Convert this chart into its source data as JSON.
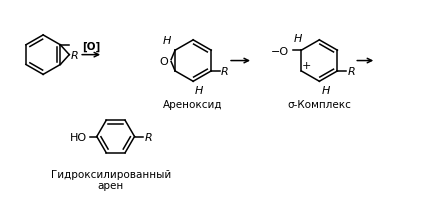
{
  "bg_color": "#ffffff",
  "fig_width": 4.37,
  "fig_height": 2.03,
  "dpi": 100,
  "label_arenoxide": "Ареноксид",
  "label_sigma": "σ-Комплекс",
  "label_hydroxy": "Гидроксилированный\nарен",
  "label_O_ox": "[O]",
  "line_color": "#000000",
  "text_color": "#000000"
}
